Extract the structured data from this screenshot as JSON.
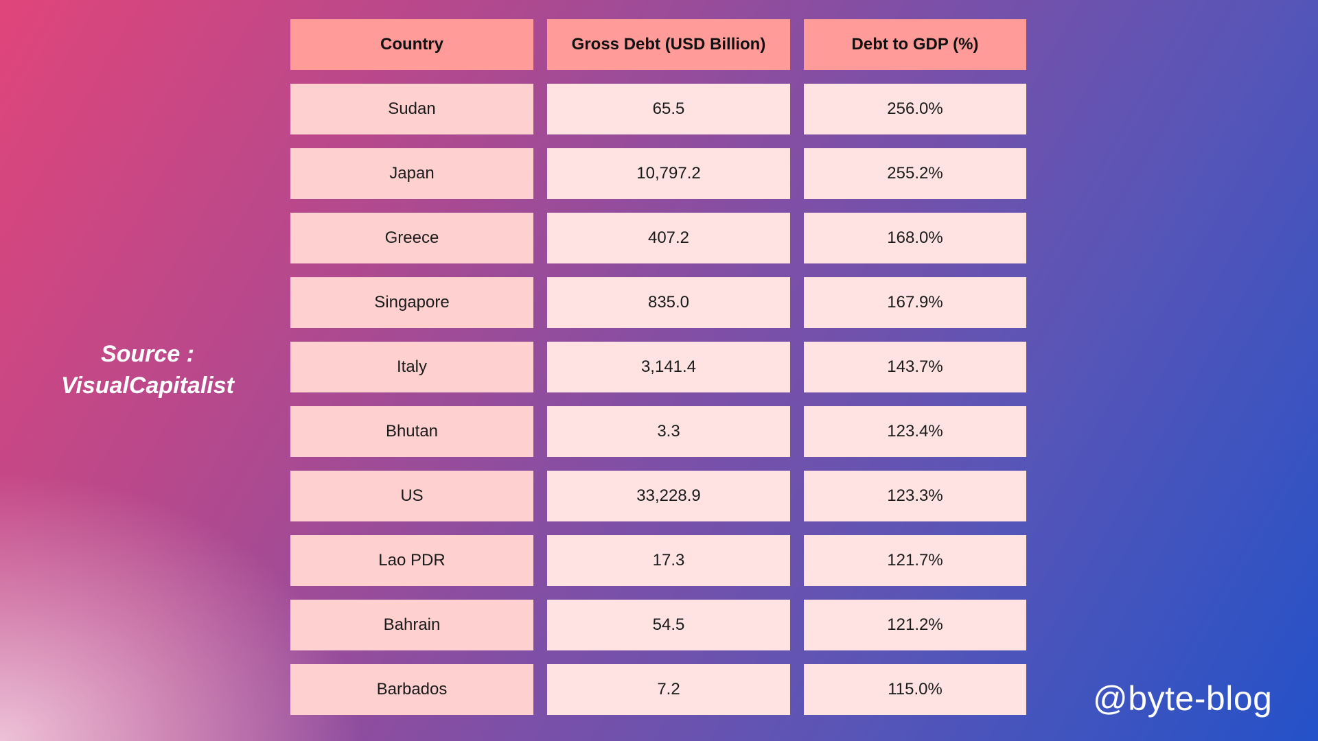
{
  "source": {
    "line1": "Source  :",
    "line2": "VisualCapitalist"
  },
  "watermark": "@byte-blog",
  "colors": {
    "header_bg": "#ff9b98",
    "country_cell_bg": "#ffd0d0",
    "value_cell_bg": "#ffe3e3"
  },
  "chart_data": {
    "type": "table",
    "columns": [
      "Country",
      "Gross Debt (USD Billion)",
      "Debt to GDP (%)"
    ],
    "rows": [
      [
        "Sudan",
        "65.5",
        "256.0%"
      ],
      [
        "Japan",
        "10,797.2",
        "255.2%"
      ],
      [
        "Greece",
        "407.2",
        "168.0%"
      ],
      [
        "Singapore",
        "835.0",
        "167.9%"
      ],
      [
        "Italy",
        "3,141.4",
        "143.7%"
      ],
      [
        "Bhutan",
        "3.3",
        "123.4%"
      ],
      [
        "US",
        "33,228.9",
        "123.3%"
      ],
      [
        "Lao PDR",
        "17.3",
        "121.7%"
      ],
      [
        "Bahrain",
        "54.5",
        "121.2%"
      ],
      [
        "Barbados",
        "7.2",
        "115.0%"
      ]
    ]
  }
}
